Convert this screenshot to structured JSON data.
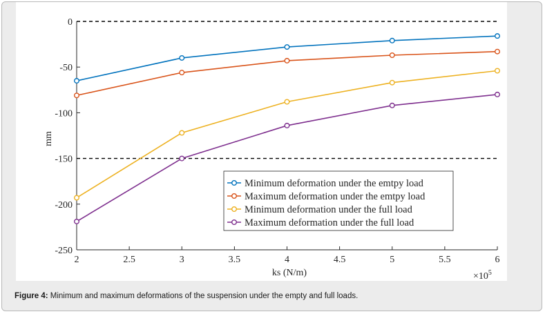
{
  "figure": {
    "caption_label": "Figure 4:",
    "caption_text": " Minimum and maximum deformations of the suspension under the empty and full loads."
  },
  "chart_data": {
    "type": "line",
    "xlabel": "ks (N/m)",
    "ylabel": "mm",
    "x_multiplier_label": "×10",
    "x_multiplier_exponent": "5",
    "xlim": [
      2,
      6
    ],
    "ylim": [
      -250,
      0
    ],
    "x_ticks": [
      2,
      2.5,
      3,
      3.5,
      4,
      4.5,
      5,
      5.5,
      6
    ],
    "y_ticks": [
      0,
      -50,
      -100,
      -150,
      -200,
      -250
    ],
    "grid": false,
    "legend_position": "bottom-right",
    "reference_lines": [
      {
        "y": 0,
        "style": "dashed",
        "color": "#000000"
      },
      {
        "y": -150,
        "style": "dashed",
        "color": "#000000"
      }
    ],
    "x": [
      2,
      3,
      4,
      5,
      6
    ],
    "series": [
      {
        "name": "Minimum deformation under the emtpy load",
        "color": "#0072BD",
        "values": [
          -65,
          -40,
          -28,
          -21,
          -16
        ]
      },
      {
        "name": "Maximum deformation under the emtpy load",
        "color": "#D95319",
        "values": [
          -81,
          -56,
          -43,
          -37,
          -33
        ]
      },
      {
        "name": "Minimum deformation under the full load",
        "color": "#EDB120",
        "values": [
          -193,
          -122,
          -88,
          -67,
          -54
        ]
      },
      {
        "name": "Maximum deformation under the full load",
        "color": "#7E2F8E",
        "values": [
          -219,
          -150,
          -114,
          -92,
          -80
        ]
      }
    ]
  }
}
